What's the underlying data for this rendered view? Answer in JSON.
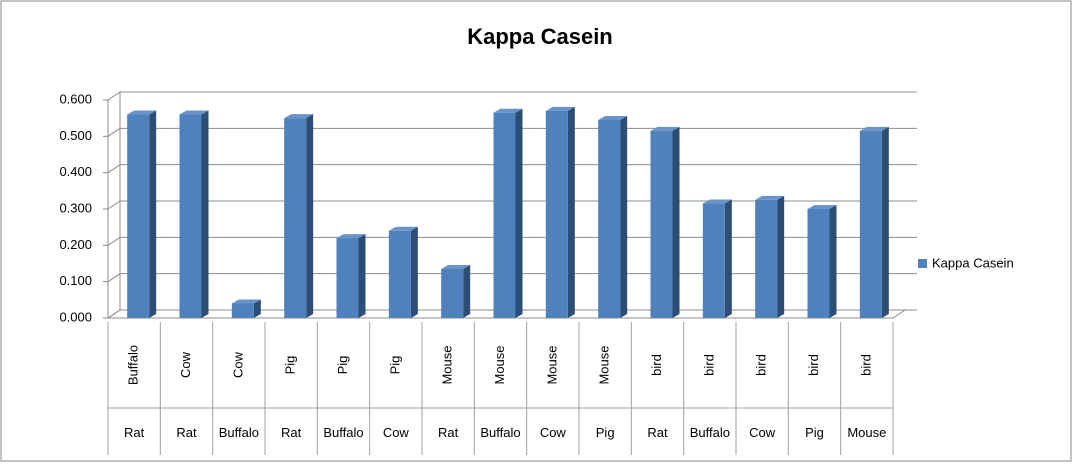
{
  "chart_data": {
    "type": "bar3d",
    "title": "Kappa Casein",
    "categories": [
      "Buffalo",
      "Cow",
      "Cow",
      "Pig",
      "Pig",
      "Pig",
      "Mouse",
      "Mouse",
      "Mouse",
      "Mouse",
      "bird",
      "bird",
      "bird",
      "bird",
      "bird"
    ],
    "outer_categories": [
      "Rat",
      "Rat",
      "Buffalo",
      "Rat",
      "Buffalo",
      "Cow",
      "Rat",
      "Buffalo",
      "Cow",
      "Pig",
      "Rat",
      "Buffalo",
      "Cow",
      "Pig",
      "Mouse"
    ],
    "series": [
      {
        "name": "Kappa Casein",
        "color": "#4f81bd",
        "values": [
          0.56,
          0.56,
          0.04,
          0.55,
          0.22,
          0.24,
          0.135,
          0.565,
          0.57,
          0.545,
          0.515,
          0.315,
          0.325,
          0.3,
          0.515
        ]
      }
    ],
    "ylim": [
      0,
      0.6
    ],
    "yticks": [
      {
        "value": 0,
        "label": "0.000"
      },
      {
        "value": 0.1,
        "label": "0.100"
      },
      {
        "value": 0.2,
        "label": "0.200"
      },
      {
        "value": 0.3,
        "label": "0.300"
      },
      {
        "value": 0.4,
        "label": "0.400"
      },
      {
        "value": 0.5,
        "label": "0.500"
      },
      {
        "value": 0.6,
        "label": "0.600"
      }
    ],
    "grid": true,
    "legend": "right"
  }
}
